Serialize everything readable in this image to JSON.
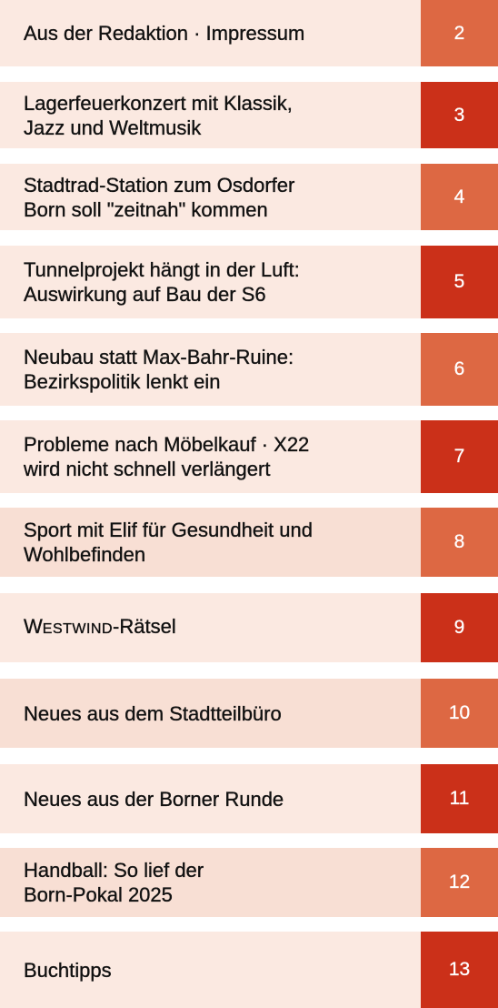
{
  "toc": {
    "colors": {
      "row_light": "#fbe9e1",
      "row_mid": "#f8dfd4",
      "page_orange": "#dd6843",
      "page_red": "#cb3019"
    },
    "entries": [
      {
        "lines": [
          "Aus der Redaktion · Impressum"
        ],
        "page": "2"
      },
      {
        "lines": [
          "Lagerfeuerkonzert mit Klassik,",
          "Jazz und Weltmusik"
        ],
        "page": "3"
      },
      {
        "lines": [
          "Stadtrad-Station zum Osdorfer",
          "Born soll \"zeitnah\" kommen"
        ],
        "page": "4"
      },
      {
        "lines": [
          "Tunnelprojekt hängt in der Luft:",
          "Auswirkung auf Bau der S6"
        ],
        "page": "5"
      },
      {
        "lines": [
          "Neubau statt Max-Bahr-Ruine:",
          "Bezirkspolitik lenkt ein"
        ],
        "page": "6"
      },
      {
        "lines": [
          "Probleme nach Möbelkauf · X22",
          "wird nicht schnell verlängert"
        ],
        "page": "7"
      },
      {
        "lines": [
          "Sport mit Elif für Gesundheit und",
          "Wohlbefinden"
        ],
        "page": "8"
      },
      {
        "title_caps_first": "W",
        "title_caps_rest": "ESTWIND",
        "title_suffix": "-Rätsel",
        "page": "9"
      },
      {
        "lines": [
          "Neues aus dem Stadtteilbüro"
        ],
        "page": "10"
      },
      {
        "lines": [
          "Neues aus der Borner Runde"
        ],
        "page": "11"
      },
      {
        "lines": [
          "Handball: So lief der",
          "Born-Pokal 2025"
        ],
        "page": "12"
      },
      {
        "lines": [
          "Buchtipps"
        ],
        "page": "13"
      }
    ]
  }
}
